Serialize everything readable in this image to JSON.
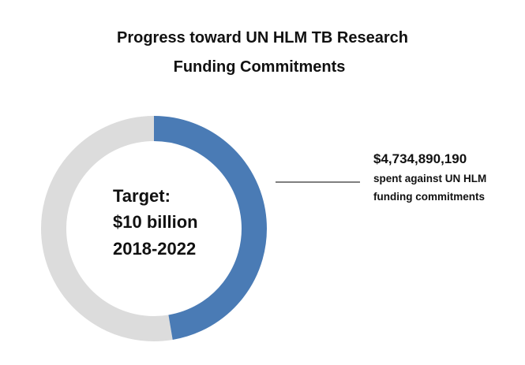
{
  "chart_data": {
    "type": "pie",
    "title": [
      "Progress toward UN HLM TB Research",
      "Funding Commitments"
    ],
    "donut": true,
    "target": 10000000000,
    "target_label": [
      "Target:",
      "$10 billion",
      "2018-2022"
    ],
    "slices": [
      {
        "label": "spent",
        "value": 4734890190,
        "color": "#4a7bb5"
      },
      {
        "label": "remaining",
        "value": 5265109810,
        "color": "#dcdcdc"
      }
    ],
    "annotation": {
      "value_label": "$4,734,890,190",
      "description": [
        "spent against UN HLM",
        "funding commitments"
      ]
    }
  }
}
